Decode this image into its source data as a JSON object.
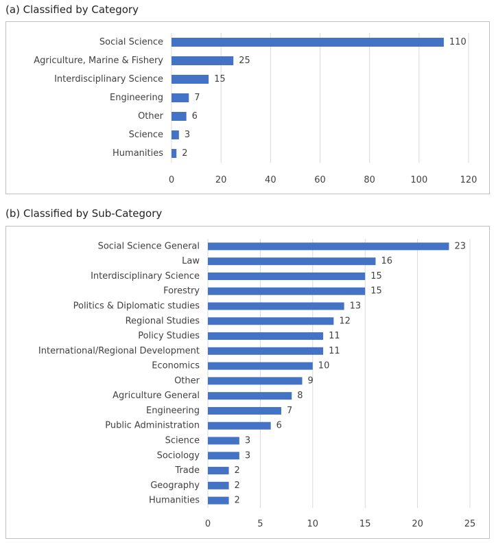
{
  "figure": {
    "caption_a": "(a) Classified by Category",
    "caption_b": "(b) Classified by Sub-Category"
  },
  "colors": {
    "bar": "#4472c4",
    "grid": "#d9d9d9",
    "text": "#404040",
    "border": "#bfbfbf"
  },
  "chart_data": [
    {
      "type": "bar",
      "orientation": "horizontal",
      "categories": [
        "Social Science",
        "Agriculture, Marine & Fishery",
        "Interdisciplinary Science",
        "Engineering",
        "Other",
        "Science",
        "Humanities"
      ],
      "values": [
        110,
        25,
        15,
        7,
        6,
        3,
        2
      ],
      "xlim": [
        0,
        120
      ],
      "xticks": [
        0,
        20,
        40,
        60,
        80,
        100,
        120
      ],
      "grid": "vertical",
      "data_labels": true
    },
    {
      "type": "bar",
      "orientation": "horizontal",
      "categories": [
        "Social Science General",
        "Law",
        "Interdisciplinary Science",
        "Forestry",
        "Politics & Diplomatic studies",
        "Regional Studies",
        "Policy Studies",
        "International/Regional Development",
        "Economics",
        "Other",
        "Agriculture General",
        "Engineering",
        "Public Administration",
        "Science",
        "Sociology",
        "Trade",
        "Geography",
        "Humanities"
      ],
      "values": [
        23,
        16,
        15,
        15,
        13,
        12,
        11,
        11,
        10,
        9,
        8,
        7,
        6,
        3,
        3,
        2,
        2,
        2
      ],
      "xlim": [
        0,
        25
      ],
      "xticks": [
        0,
        5,
        10,
        15,
        20,
        25
      ],
      "grid": "vertical",
      "data_labels": true
    }
  ]
}
